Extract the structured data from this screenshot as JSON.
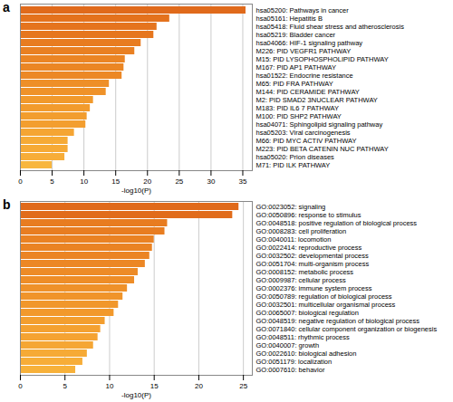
{
  "chart_data": [
    {
      "type": "bar",
      "title": "a",
      "orientation": "horizontal",
      "x_label": "-log10(P)",
      "categories": [
        "hsa05200: Pathways in cancer",
        "hsa05161: Hepatitis B",
        "hsa05418: Fluid shear stress and atherosclerosis",
        "hsa05219: Bladder cancer",
        "hsa04066: HIF-1 signaling pathway",
        "M226: PID VEGFR1 PATHWAY",
        "M15: PID LYSOPHOSPHOLIPID PATHWAY",
        "M167: PID AP1 PATHWAY",
        "hsa01522: Endocrine resistance",
        "M65: PID FRA PATHWAY",
        "M144: PID CERAMIDE PATHWAY",
        "M2: PID SMAD2 3NUCLEAR PATHWAY",
        "M183: PID IL6 7 PATHWAY",
        "M100: PID SHP2 PATHWAY",
        "hsa04071: Sphingolipid signaling pathway",
        "hsa05203: Viral carcinogenesis",
        "M66: PID MYC ACTIV PATHWAY",
        "M223: PID BETA CATENIN NUC PATHWAY",
        "hsa05020: Prion diseases",
        "M71: PID ILK PATHWAY"
      ],
      "values": [
        35.5,
        23.5,
        21.5,
        21,
        19,
        18,
        16.5,
        16.3,
        16,
        14,
        13.5,
        11.5,
        11,
        10.5,
        10.3,
        8.5,
        7.5,
        7.5,
        7,
        5
      ],
      "colors": [
        "#e06a1b",
        "#e4721d",
        "#e5741e",
        "#e6761e",
        "#e87c20",
        "#e98022",
        "#eb8524",
        "#eb8624",
        "#ec8825",
        "#ee8f28",
        "#ef9229",
        "#f1992c",
        "#f29b2d",
        "#f29d2e",
        "#f39e2f",
        "#f5a533",
        "#f6aa36",
        "#f6aa36",
        "#f7ad38",
        "#f8b63d"
      ],
      "xlim": [
        0,
        36.5
      ],
      "xticks": [
        0,
        5,
        10,
        15,
        20,
        25,
        30,
        35
      ],
      "grid": true,
      "tick_labels": true
    },
    {
      "type": "bar",
      "title": "b",
      "orientation": "horizontal",
      "x_label": "-log10(P)",
      "categories": [
        "GO:0023052: signaling",
        "GO:0050896: response to stimulus",
        "GO:0048518: positive regulation of biological process",
        "GO:0008283: cell proliferation",
        "GO:0040011: locomotion",
        "GO:0022414: reproductive process",
        "GO:0032502: developmental process",
        "GO:0051704: multi-organism process",
        "GO:0008152: metabolic process",
        "GO:0009987: cellular process",
        "GO:0002376: immune system process",
        "GO:0050789: regulation of biological process",
        "GO:0032501: multicellular organismal process",
        "GO:0065007: biological regulation",
        "GO:0048519: negative regulation of biological process",
        "GO:0071840: cellular component organization or biogenesis",
        "GO:0048511: rhythmic process",
        "GO:0040007: growth",
        "GO:0022610: biological adhesion",
        "GO:0051179: localization",
        "GO:0007610: behavior"
      ],
      "values": [
        24.5,
        23.8,
        16.5,
        16.2,
        15,
        14.8,
        14.5,
        14,
        13.2,
        12.8,
        12,
        11.5,
        11,
        10.5,
        9.5,
        9,
        8.7,
        8.2,
        7.5,
        7,
        6.2
      ],
      "colors": [
        "#e06a1b",
        "#e16c1b",
        "#e87c20",
        "#e87d21",
        "#ea8223",
        "#ea8323",
        "#eb8424",
        "#ec8725",
        "#ed8b27",
        "#ee8d27",
        "#ef9129",
        "#f0942a",
        "#f1972b",
        "#f2992c",
        "#f39e2f",
        "#f4a131",
        "#f5a332",
        "#f5a634",
        "#f6aa36",
        "#f7ad38",
        "#f7b13a"
      ],
      "xlim": [
        0,
        26
      ],
      "xticks": [
        0,
        5,
        10,
        15,
        20,
        25
      ],
      "grid": true,
      "tick_labels": true
    }
  ]
}
